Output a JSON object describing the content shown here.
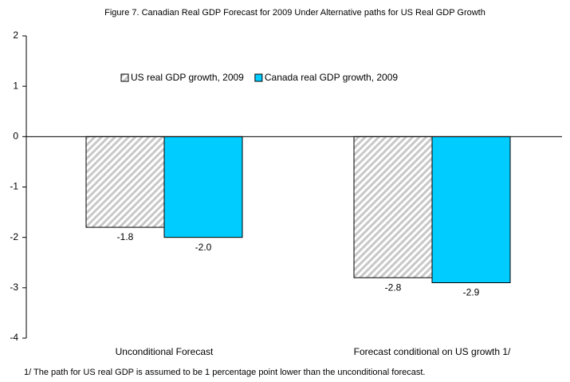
{
  "chart_data": {
    "type": "bar",
    "title": "Figure 7. Canadian Real GDP Forecast for 2009 Under Alternative paths for US Real GDP Growth",
    "categories": [
      "Unconditional Forecast",
      "Forecast conditional on US growth 1/"
    ],
    "series": [
      {
        "name": "US real GDP growth, 2009",
        "color": "#c8c8c8",
        "hatch": true,
        "values": [
          -1.8,
          -2.8
        ],
        "value_labels": [
          "-1.8",
          "-2.8"
        ]
      },
      {
        "name": "Canada real GDP growth, 2009",
        "color": "#00ccff",
        "values": [
          -2,
          -2.9
        ],
        "value_labels": [
          "-2.0",
          "-2.9"
        ]
      }
    ],
    "ylim": [
      -4,
      2
    ],
    "yticks": [
      2,
      1,
      0,
      -1,
      -2,
      -3,
      -4
    ],
    "note": "1/ The path for US real GDP is assumed to be 1 percentage point lower than the unconditional forecast."
  }
}
